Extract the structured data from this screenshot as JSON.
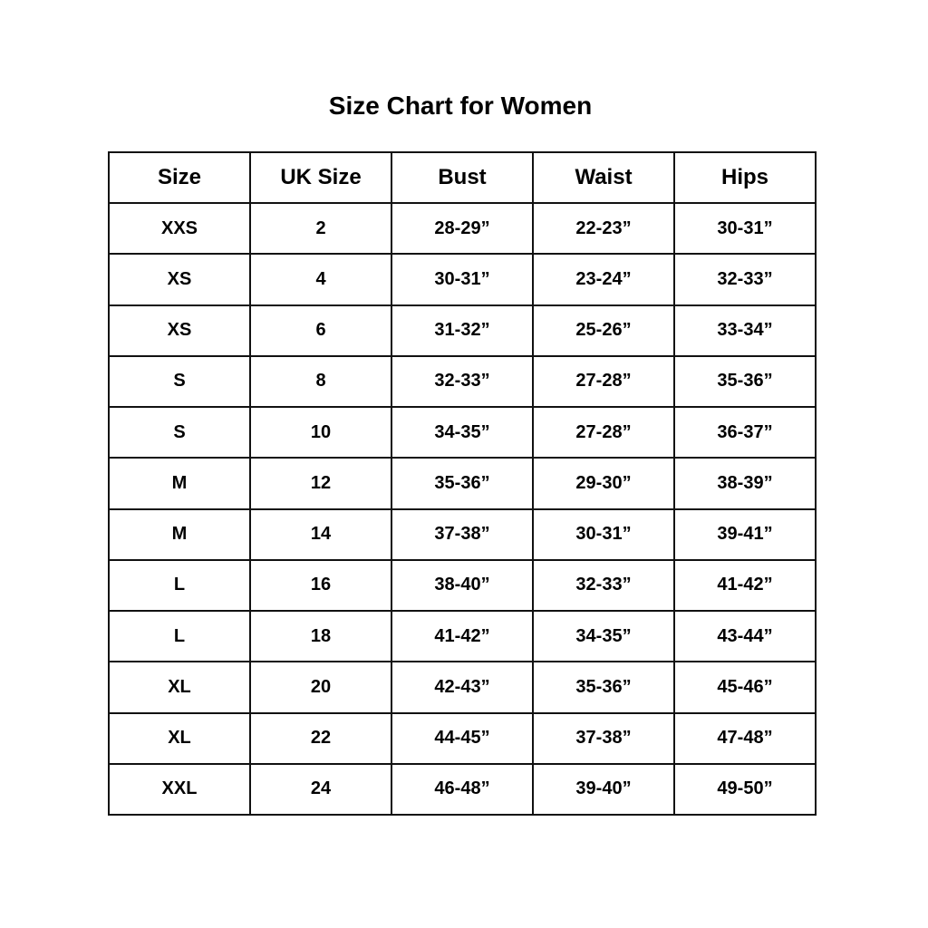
{
  "title": "Size Chart for Women",
  "table": {
    "headers": [
      "Size",
      "UK Size",
      "Bust",
      "Waist",
      "Hips"
    ],
    "rows": [
      [
        "XXS",
        "2",
        "28-29”",
        "22-23”",
        "30-31”"
      ],
      [
        "XS",
        "4",
        "30-31”",
        "23-24”",
        "32-33”"
      ],
      [
        "XS",
        "6",
        "31-32”",
        "25-26”",
        "33-34”"
      ],
      [
        "S",
        "8",
        "32-33”",
        "27-28”",
        "35-36”"
      ],
      [
        "S",
        "10",
        "34-35”",
        "27-28”",
        "36-37”"
      ],
      [
        "M",
        "12",
        "35-36”",
        "29-30”",
        "38-39”"
      ],
      [
        "M",
        "14",
        "37-38”",
        "30-31”",
        "39-41”"
      ],
      [
        "L",
        "16",
        "38-40”",
        "32-33”",
        "41-42”"
      ],
      [
        "L",
        "18",
        "41-42”",
        "34-35”",
        "43-44”"
      ],
      [
        "XL",
        "20",
        "42-43”",
        "35-36”",
        "45-46”"
      ],
      [
        "XL",
        "22",
        "44-45”",
        "37-38”",
        "47-48”"
      ],
      [
        "XXL",
        "24",
        "46-48”",
        "39-40”",
        "49-50”"
      ]
    ]
  }
}
